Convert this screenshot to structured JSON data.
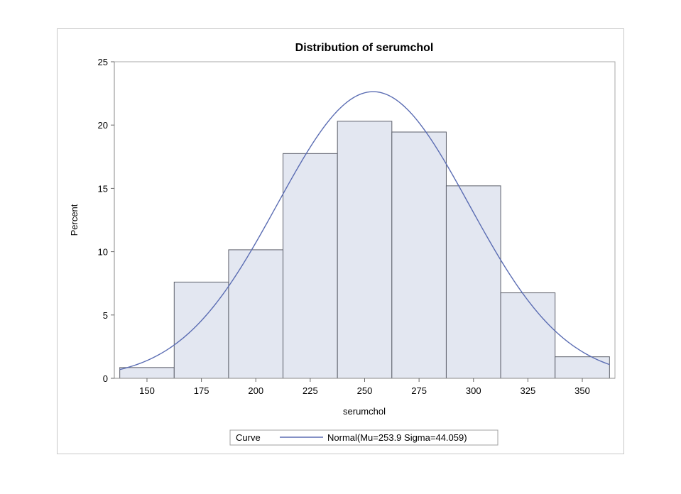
{
  "chart_data": {
    "type": "bar",
    "subtype": "histogram",
    "title": "Distribution of serumchol",
    "xlabel": "serumchol",
    "ylabel": "Percent",
    "xlim": [
      135,
      365
    ],
    "ylim": [
      0,
      25
    ],
    "x_ticks": [
      150,
      175,
      200,
      225,
      250,
      275,
      300,
      325,
      350
    ],
    "y_ticks": [
      0,
      5,
      10,
      15,
      20,
      25
    ],
    "bin_width": 25,
    "bins": [
      {
        "center": 150,
        "value": 0.85
      },
      {
        "center": 175,
        "value": 7.6
      },
      {
        "center": 200,
        "value": 10.15
      },
      {
        "center": 225,
        "value": 17.75
      },
      {
        "center": 250,
        "value": 20.3
      },
      {
        "center": 275,
        "value": 19.45
      },
      {
        "center": 300,
        "value": 15.2
      },
      {
        "center": 325,
        "value": 6.75
      },
      {
        "center": 350,
        "value": 1.7
      }
    ],
    "curve": {
      "name": "Normal",
      "mu": 253.9,
      "sigma": 44.059,
      "x_range": [
        137.5,
        362.5
      ]
    },
    "legend": {
      "header": "Curve",
      "entry": "Normal(Mu=253.9 Sigma=44.059)",
      "position": "bottom-center"
    }
  }
}
